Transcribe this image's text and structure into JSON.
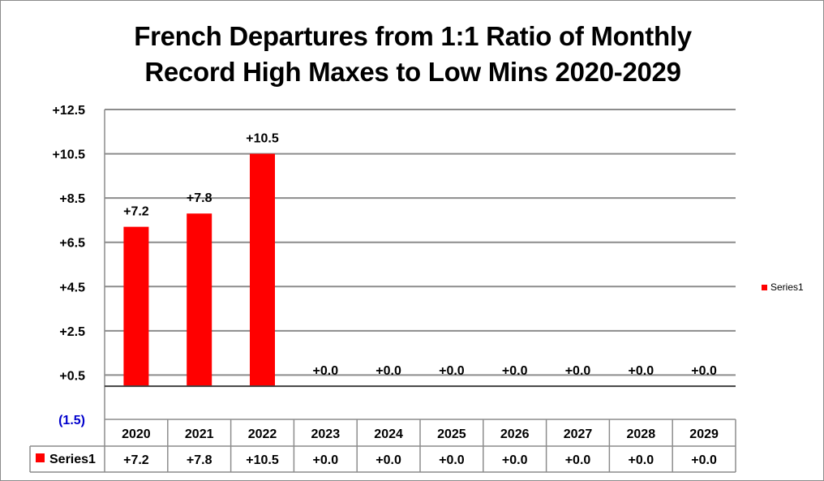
{
  "chart_data": {
    "type": "bar",
    "title": "French Departures from 1:1 Ratio of Monthly Record High Maxes to Low Mins 2020-2029",
    "title_lines": [
      "French Departures from 1:1 Ratio of Monthly",
      "Record High Maxes to Low Mins 2020-2029"
    ],
    "categories": [
      "2020",
      "2021",
      "2022",
      "2023",
      "2024",
      "2025",
      "2026",
      "2027",
      "2028",
      "2029"
    ],
    "series": [
      {
        "name": "Series1",
        "values": [
          7.2,
          7.8,
          10.5,
          0.0,
          0.0,
          0.0,
          0.0,
          0.0,
          0.0,
          0.0
        ],
        "labels": [
          "+7.2",
          "+7.8",
          "+10.5",
          "+0.0",
          "+0.0",
          "+0.0",
          "+0.0",
          "+0.0",
          "+0.0",
          "+0.0"
        ],
        "color": "#ff0000"
      }
    ],
    "y_ticks": [
      12.5,
      10.5,
      8.5,
      6.5,
      4.5,
      2.5,
      0.5,
      -1.5
    ],
    "y_tick_labels": [
      "+12.5",
      "+10.5",
      "+8.5",
      "+6.5",
      "+4.5",
      "+2.5",
      "+0.5",
      "(1.5)"
    ],
    "negative_label_color": "#0000cc",
    "ylim": [
      -1.5,
      12.5
    ],
    "grid": true,
    "legend_position": "right",
    "data_table": true,
    "xlabel": "",
    "ylabel": ""
  }
}
